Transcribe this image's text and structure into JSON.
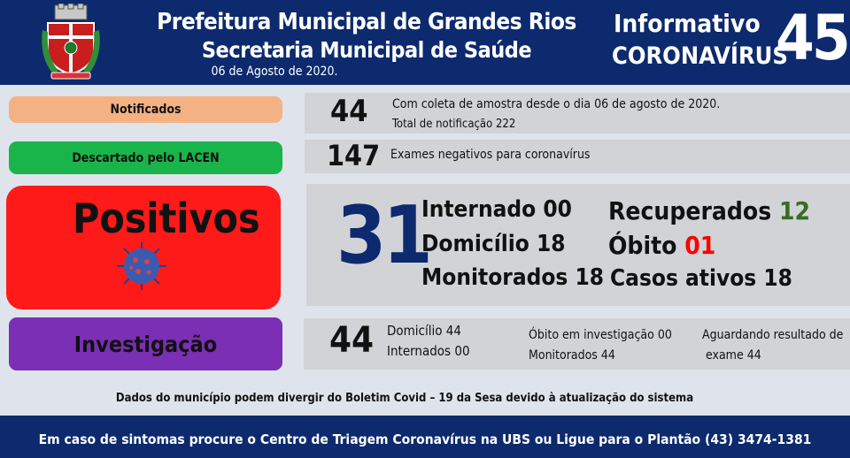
{
  "header": {
    "line1": "Prefeitura Municipal de Grandes Rios",
    "line2": "Secretaria Municipal de Saúde",
    "date": "06 de Agosto de 2020.",
    "informativo": "Informativo",
    "coronavirus": "CORONAVÍRUS",
    "number": "45"
  },
  "notificados": {
    "label": "Notificados",
    "value": "44",
    "text1": "Com coleta de amostra desde o dia 06 de agosto de 2020.",
    "text2": "Total de notificação 222"
  },
  "descartado": {
    "label": "Descartado pelo LACEN",
    "value": "147",
    "text": "Exames negativos para coronavírus"
  },
  "positivos": {
    "label": "Positivos",
    "value": "31",
    "internado": "Internado 00",
    "domicilio": "Domicílio 18",
    "monitorados": "Monitorados 18",
    "recuperados_label": "Recuperados",
    "recuperados_value": "12",
    "obito_label": "Óbito",
    "obito_value": "01",
    "casos_ativos": "Casos ativos 18"
  },
  "investigacao": {
    "label": "Investigação",
    "value": "44",
    "domicilio": "Domicílio 44",
    "internados": "Internados 00",
    "obito_inv": "Óbito em investigação 00",
    "monitorados": "Monitorados 44",
    "aguardando1": "Aguardando resultado de",
    "aguardando2": "exame 44"
  },
  "disclaimer": "Dados do município podem divergir do Boletim Covid – 19 da Sesa devido à atualização do sistema",
  "footer": "Em caso de sintomas procure o Centro de Triagem Coronavírus na UBS ou Ligue para o Plantão (43) 3474-1381",
  "colors": {
    "navy": "#0d2a6e",
    "notificados": "#f4b183",
    "descartado": "#19b44a",
    "positivos": "#ff1a1a",
    "investigacao": "#7a2fb5",
    "recuperados": "#3a6b24",
    "obito": "#ff0000"
  }
}
